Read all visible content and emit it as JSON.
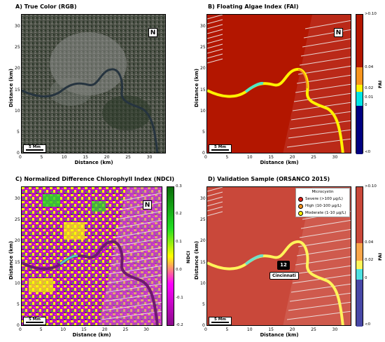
{
  "panels": {
    "a": {
      "title": "A) True Color (RGB)"
    },
    "b": {
      "title": "B) Floating Algae Index (FAI)"
    },
    "c": {
      "title": "C) Normalized Difference Chlorophyll Index (NDCI)"
    },
    "d": {
      "title": "D) Validation Sample (ORSANCO 2015)"
    }
  },
  "axes": {
    "xlabel": "Distance (km)",
    "ylabel": "Distance (km)",
    "xticks": [
      "0",
      "5",
      "10",
      "15",
      "20",
      "25",
      "30"
    ],
    "yticks": [
      "30",
      "25",
      "20",
      "15",
      "10",
      "5",
      "0"
    ]
  },
  "north_label": "N",
  "scale_bar_label": "5 Mm",
  "fai_colorbar": {
    "label": "FAI",
    "ticks": [
      ">0.10",
      "0.04",
      "0.02",
      "0.01",
      "0",
      "<0"
    ],
    "colors": {
      "top": "#b31600",
      "orange": "#f7941d",
      "yellow": "#fff200",
      "cyan": "#00e5e5",
      "navy": "#000080"
    }
  },
  "fai_colorbar_d": {
    "label": "FAI",
    "ticks": [
      ">0.10",
      "0.04",
      "0.02",
      "0",
      "<0"
    ],
    "colors": {
      "top": "#c9483a",
      "orange": "#f9a64a",
      "yellow": "#fff45a",
      "cyan": "#4de0e0",
      "navy": "#4848a6"
    }
  },
  "ndci_colorbar": {
    "label": "NDCI",
    "ticks": [
      "0.3",
      "0.2",
      "0.1",
      "0.0",
      "-0.1",
      "-0.2"
    ],
    "colors": {
      "green_dark": "#0a6d0a",
      "green": "#22dd22",
      "yellow": "#ffff00",
      "magenta": "#ff00ff",
      "purple": "#8a0b8a"
    }
  },
  "legend": {
    "title": "Microcystin",
    "items": [
      {
        "label": "Severe (>100 μg/L)",
        "color": "#e2231a"
      },
      {
        "label": "High (10-100 μg/L)",
        "color": "#f7941d"
      },
      {
        "label": "Moderate (1-10 μg/L)",
        "color": "#fff200"
      }
    ]
  },
  "sample_marker": {
    "count": "12",
    "city": "Cincinnati"
  }
}
